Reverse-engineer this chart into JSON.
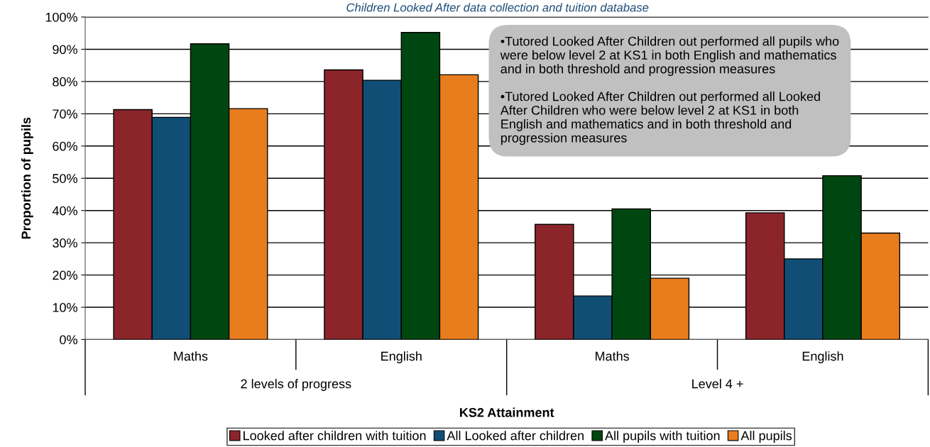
{
  "chart_data": {
    "type": "bar",
    "xlabel": "KS2 Attainment",
    "ylabel": "Proportion of pupils",
    "categories": [
      "Maths",
      "English",
      "Maths",
      "English"
    ],
    "series": [
      {
        "name": "Looked after children with tuition",
        "color": "#8b252a",
        "values": [
          71.3,
          83.6,
          35.7,
          39.3
        ]
      },
      {
        "name": "All Looked after children",
        "color": "#114e75",
        "values": [
          68.9,
          80.4,
          13.5,
          25.0
        ]
      },
      {
        "name": "All pupils with tuition",
        "color": "#004611",
        "values": [
          91.7,
          95.2,
          40.5,
          50.8
        ]
      },
      {
        "name": "All pupils",
        "color": "#e87d1e",
        "values": [
          71.6,
          82.1,
          19.0,
          33.0
        ]
      }
    ],
    "ylim": [
      0,
      100
    ],
    "yticks": [
      {
        "value": 0,
        "label": "0%"
      },
      {
        "value": 10,
        "label": "10%"
      },
      {
        "value": 20,
        "label": "20%"
      },
      {
        "value": 30,
        "label": "30%"
      },
      {
        "value": 40,
        "label": "40%"
      },
      {
        "value": 50,
        "label": "50%"
      },
      {
        "value": 60,
        "label": "60%"
      },
      {
        "value": 70,
        "label": "70%"
      },
      {
        "value": 80,
        "label": "80%"
      },
      {
        "value": 90,
        "label": "90%"
      },
      {
        "value": 100,
        "label": "100%"
      }
    ],
    "grid": "y",
    "legend": "bottom",
    "annotations": [
      "Children Looked After data collection and tuition database",
      "2 levels of progress",
      "Level 4 +",
      "•Tutored Looked After Children out performed all pupils who\nwere below level 2 at KS1 in both English and mathematics\nand in both threshold and progression measures",
      "•Tutored Looked After Children out performed all Looked\nAfter Children who were below level 2 at KS1 in both\nEnglish and mathematics and in both threshold and\nprogression measures"
    ]
  }
}
